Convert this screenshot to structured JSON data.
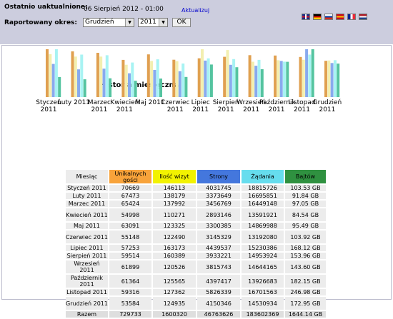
{
  "header": {
    "last_update_label": "Ostatnio uaktualnione:",
    "last_update_value": "06 Sierpień 2012 - 01:00",
    "update_link": "Aktualizuj",
    "period_label": "Raportowany okres:",
    "month_select": "Grudzień",
    "year_select": "2011",
    "ok_label": "OK"
  },
  "flags": [
    {
      "icon": "flag-uk-icon",
      "colors": [
        "#1a2f8a",
        "#cf142b",
        "#ffffff"
      ]
    },
    {
      "icon": "flag-de-icon",
      "colors": [
        "#000000",
        "#dd0000",
        "#ffce00"
      ]
    },
    {
      "icon": "flag-ru-icon",
      "colors": [
        "#ffffff",
        "#0039a6",
        "#d52b1e"
      ]
    },
    {
      "icon": "flag-es-icon",
      "colors": [
        "#c60b1e",
        "#ffc400",
        "#c60b1e"
      ]
    },
    {
      "icon": "flag-fr-icon",
      "colors": [
        "#002395",
        "#ffffff",
        "#ed2939"
      ]
    },
    {
      "icon": "flag-nl-icon",
      "colors": [
        "#ae1c28",
        "#ffffff",
        "#21468b"
      ]
    }
  ],
  "colors": {
    "header_bg": "#cccdde",
    "visitors": "#f8a33a",
    "visits": "#f2f200",
    "pages": "#4477dd",
    "hits": "#66ddee",
    "bandwidth": "#2f9140"
  },
  "chart_data": {
    "type": "bar",
    "title": "Historia miesięczna",
    "categories": [
      "Styczeń 2011",
      "Luty 2011",
      "Marzec 2011",
      "Kwiecień 2011",
      "Maj 2011",
      "Czerwiec 2011",
      "Lipiec 2011",
      "Sierpień 2011",
      "Wrzesień 2011",
      "Październik 2011",
      "Listopad 2011",
      "Grudzień 2011"
    ],
    "series": [
      {
        "name": "Unikalnych gości",
        "values": [
          70669,
          67473,
          65424,
          54998,
          63091,
          55148,
          57253,
          59514,
          61899,
          61364,
          59316,
          53584
        ]
      },
      {
        "name": "Ilość wizyt",
        "values": [
          146113,
          138179,
          137992,
          110271,
          123325,
          122490,
          163173,
          160389,
          120526,
          125565,
          127362,
          124935
        ]
      },
      {
        "name": "Strony",
        "values": [
          4031745,
          3373649,
          3456769,
          2893146,
          3300385,
          3145329,
          4439537,
          3933221,
          3815743,
          4397417,
          5826339,
          4150346
        ]
      },
      {
        "name": "Żądania",
        "values": [
          18815726,
          16695851,
          16449148,
          13591921,
          14869988,
          13192080,
          15230386,
          14953924,
          14644165,
          13926683,
          16701563,
          14530934
        ]
      },
      {
        "name": "Bajtów",
        "values": [
          103.53,
          91.84,
          97.05,
          84.54,
          95.49,
          103.92,
          168.12,
          153.96,
          143.6,
          182.15,
          246.98,
          172.95
        ]
      }
    ]
  },
  "table": {
    "headers": [
      "Miesiąc",
      "Unikalnych gości",
      "Ilość wizyt",
      "Strony",
      "Żądania",
      "Bajtów"
    ],
    "rows": [
      [
        "Styczeń 2011",
        "70669",
        "146113",
        "4031745",
        "18815726",
        "103.53 GB"
      ],
      [
        "Luty 2011",
        "67473",
        "138179",
        "3373649",
        "16695851",
        "91.84 GB"
      ],
      [
        "Marzec 2011",
        "65424",
        "137992",
        "3456769",
        "16449148",
        "97.05 GB"
      ],
      [
        "Kwiecień 2011",
        "54998",
        "110271",
        "2893146",
        "13591921",
        "84.54 GB"
      ],
      [
        "Maj 2011",
        "63091",
        "123325",
        "3300385",
        "14869988",
        "95.49 GB"
      ],
      [
        "Czerwiec 2011",
        "55148",
        "122490",
        "3145329",
        "13192080",
        "103.92 GB"
      ],
      [
        "Lipiec 2011",
        "57253",
        "163173",
        "4439537",
        "15230386",
        "168.12 GB"
      ],
      [
        "Sierpień 2011",
        "59514",
        "160389",
        "3933221",
        "14953924",
        "153.96 GB"
      ],
      [
        "Wrzesień 2011",
        "61899",
        "120526",
        "3815743",
        "14644165",
        "143.60 GB"
      ],
      [
        "Październik 2011",
        "61364",
        "125565",
        "4397417",
        "13926683",
        "182.15 GB"
      ],
      [
        "Listopad 2011",
        "59316",
        "127362",
        "5826339",
        "16701563",
        "246.98 GB"
      ],
      [
        "Grudzień 2011",
        "53584",
        "124935",
        "4150346",
        "14530934",
        "172.95 GB"
      ]
    ],
    "total": [
      "Razem",
      "729733",
      "1600320",
      "46763626",
      "183602369",
      "1644.14 GB"
    ]
  }
}
